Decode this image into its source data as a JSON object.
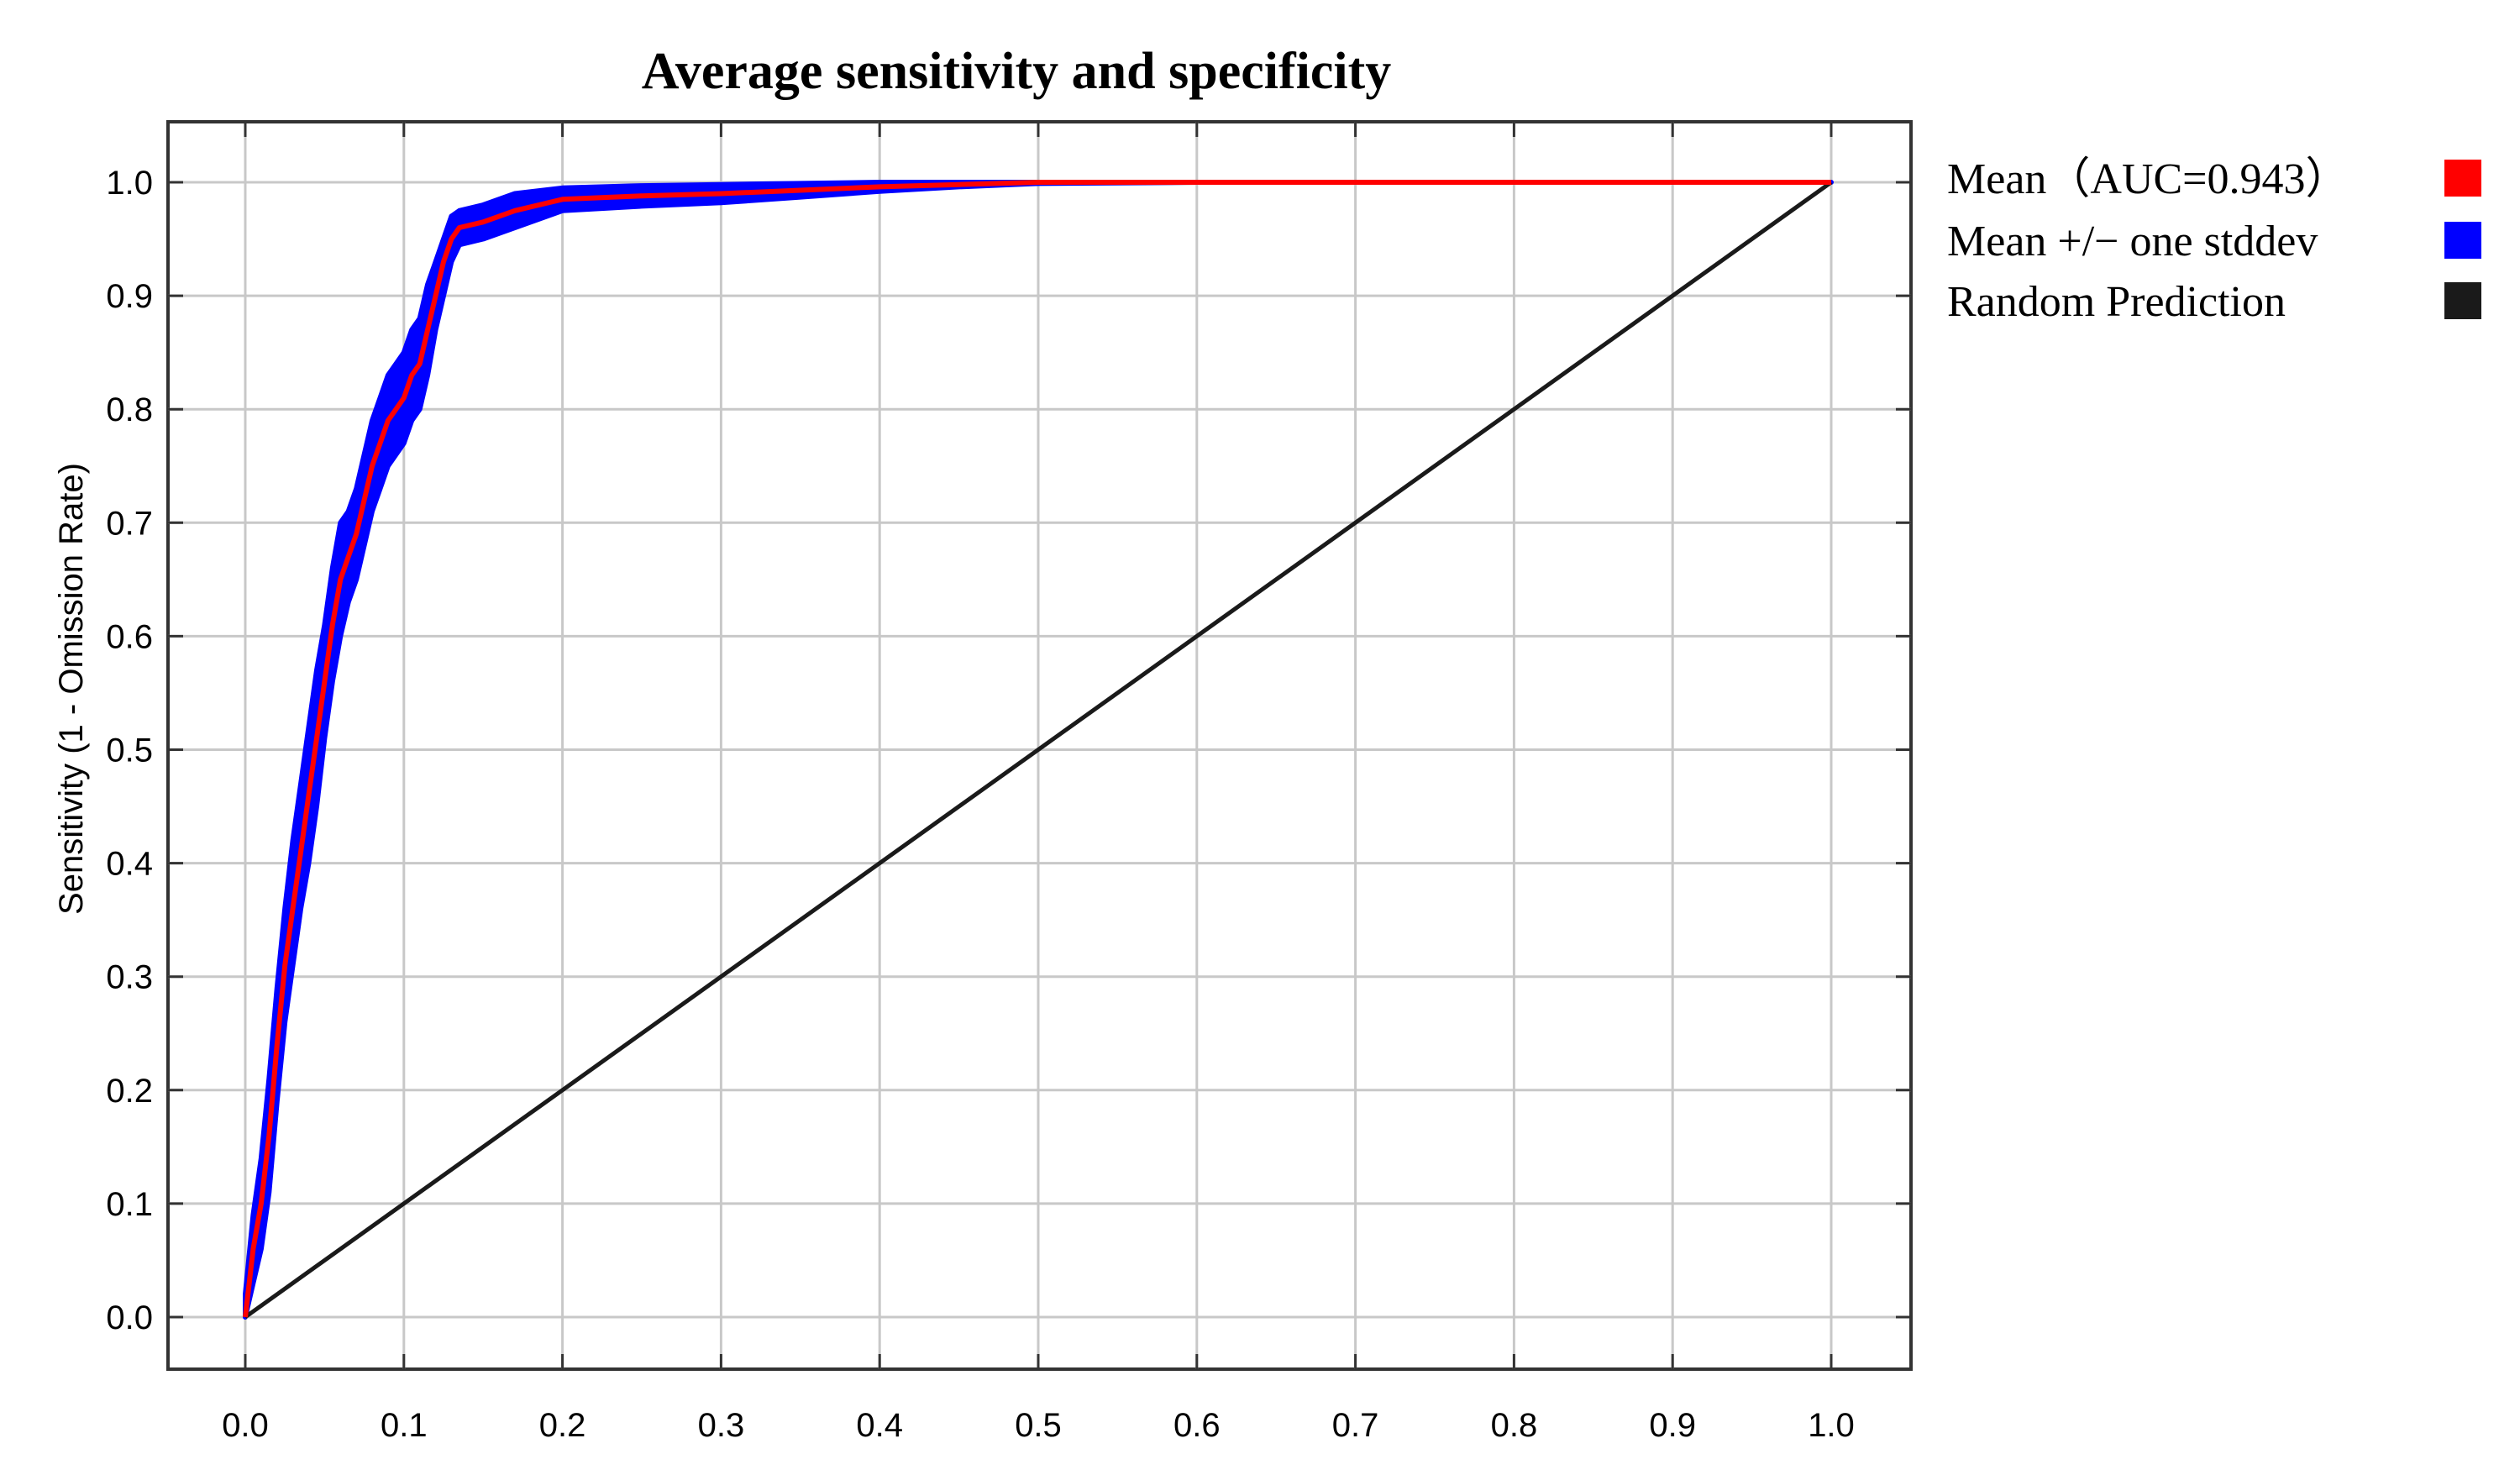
{
  "chart_data": {
    "type": "line",
    "title": "Average sensitivity and specificity",
    "xlabel": "",
    "ylabel": "Sensitivity (1 - Omission Rate)",
    "xlim": [
      0,
      1
    ],
    "ylim": [
      0,
      1
    ],
    "x_ticks": [
      "0.0",
      "0.1",
      "0.2",
      "0.3",
      "0.4",
      "0.5",
      "0.6",
      "0.7",
      "0.8",
      "0.9",
      "1.0"
    ],
    "y_ticks": [
      "0.0",
      "0.1",
      "0.2",
      "0.3",
      "0.4",
      "0.5",
      "0.6",
      "0.7",
      "0.8",
      "0.9",
      "1.0"
    ],
    "grid": true,
    "legend_position": "right",
    "series": [
      {
        "name": "Mean（AUC=0.943）",
        "color": "#ff0000",
        "x": [
          0,
          0.005,
          0.01,
          0.015,
          0.02,
          0.025,
          0.03,
          0.035,
          0.04,
          0.045,
          0.05,
          0.055,
          0.06,
          0.065,
          0.07,
          0.075,
          0.08,
          0.085,
          0.09,
          0.095,
          0.1,
          0.105,
          0.11,
          0.115,
          0.12,
          0.125,
          0.13,
          0.135,
          0.15,
          0.17,
          0.2,
          0.25,
          0.3,
          0.35,
          0.4,
          0.45,
          0.5,
          0.6,
          0.7,
          0.8,
          0.9,
          1.0
        ],
        "y": [
          0,
          0.06,
          0.1,
          0.16,
          0.24,
          0.31,
          0.36,
          0.41,
          0.46,
          0.51,
          0.56,
          0.61,
          0.65,
          0.67,
          0.69,
          0.72,
          0.75,
          0.77,
          0.79,
          0.8,
          0.81,
          0.83,
          0.84,
          0.87,
          0.9,
          0.93,
          0.95,
          0.96,
          0.965,
          0.975,
          0.985,
          0.988,
          0.99,
          0.993,
          0.996,
          0.998,
          1.0,
          1.0,
          1.0,
          1.0,
          1.0,
          1.0
        ]
      },
      {
        "name": "Mean +/− one stddev",
        "color": "#0000ff",
        "x": [
          0,
          0.005,
          0.01,
          0.015,
          0.02,
          0.025,
          0.03,
          0.035,
          0.04,
          0.045,
          0.05,
          0.055,
          0.06,
          0.065,
          0.07,
          0.075,
          0.08,
          0.085,
          0.09,
          0.095,
          0.1,
          0.105,
          0.11,
          0.115,
          0.12,
          0.125,
          0.13,
          0.135,
          0.15,
          0.17,
          0.2,
          0.25,
          0.3,
          0.35,
          0.4,
          0.45,
          0.5,
          0.6,
          0.7,
          0.8,
          0.9,
          1.0
        ],
        "upper": [
          0.02,
          0.09,
          0.14,
          0.21,
          0.29,
          0.36,
          0.42,
          0.47,
          0.52,
          0.57,
          0.61,
          0.66,
          0.7,
          0.71,
          0.73,
          0.76,
          0.79,
          0.81,
          0.83,
          0.84,
          0.85,
          0.87,
          0.88,
          0.91,
          0.93,
          0.95,
          0.97,
          0.975,
          0.98,
          0.99,
          0.995,
          0.997,
          0.998,
          0.999,
          1.0,
          1.0,
          1.0,
          1.0,
          1.0,
          1.0,
          1.0,
          1.0
        ],
        "lower": [
          0,
          0.03,
          0.06,
          0.11,
          0.19,
          0.26,
          0.31,
          0.36,
          0.4,
          0.45,
          0.51,
          0.56,
          0.6,
          0.63,
          0.65,
          0.68,
          0.71,
          0.73,
          0.75,
          0.76,
          0.77,
          0.79,
          0.8,
          0.83,
          0.87,
          0.9,
          0.93,
          0.945,
          0.95,
          0.96,
          0.975,
          0.979,
          0.982,
          0.987,
          0.992,
          0.996,
          0.999,
          1.0,
          1.0,
          1.0,
          1.0,
          1.0
        ]
      },
      {
        "name": "Random Prediction",
        "color": "#1a1a1a",
        "x": [
          0,
          1
        ],
        "y": [
          0,
          1
        ]
      }
    ]
  }
}
